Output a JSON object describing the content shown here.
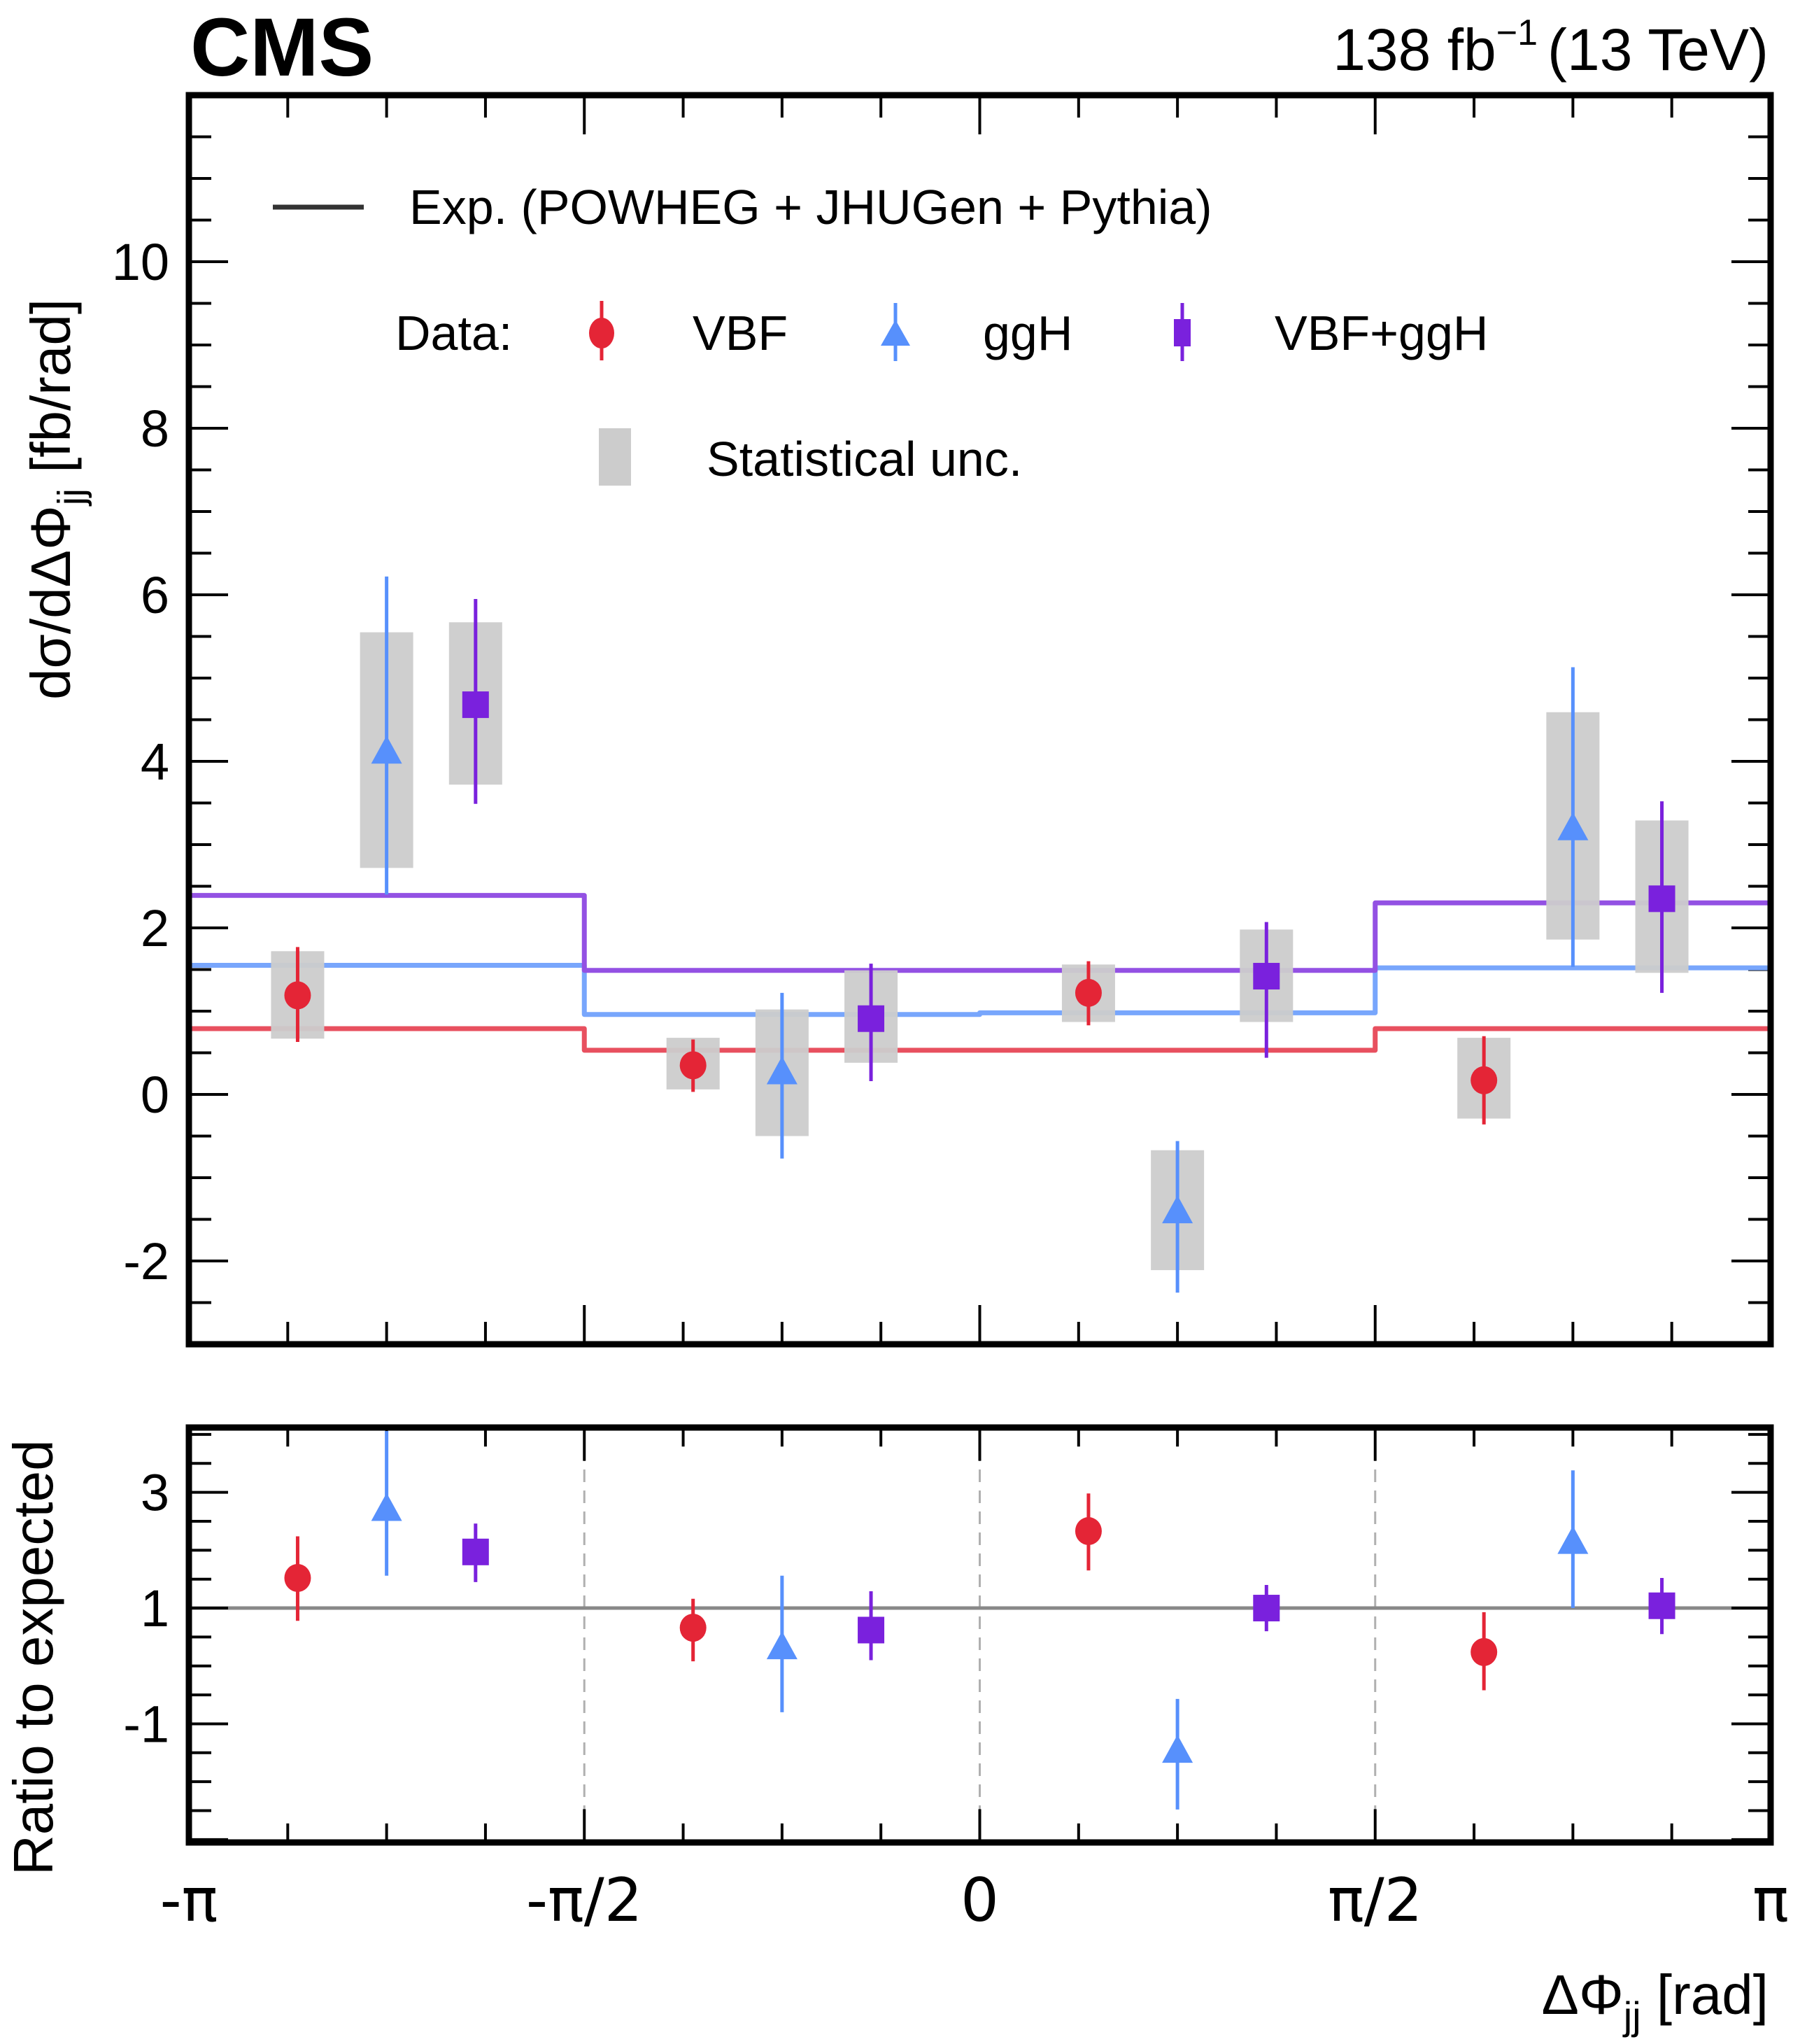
{
  "header": {
    "experiment": "CMS",
    "luminosity_text": "138 fb",
    "luminosity_exponent": "−1",
    "energy_text": "(13 TeV)"
  },
  "colors": {
    "vbf": "#e42536",
    "ggh": "#5790fc",
    "comb": "#7a21dd",
    "vbf_exp": "#e8505f",
    "ggh_exp": "#78a6fc",
    "comb_exp": "#9351e3",
    "stat_band": "#cccccc",
    "ratio_ref": "#888888",
    "divider": "#b0b0b0"
  },
  "legend": {
    "expected_label": "Exp. (POWHEG + JHUGen + Pythia)",
    "data_prefix": "Data:",
    "vbf_label": "VBF",
    "ggh_label": "ggH",
    "comb_label": "VBF+ggH",
    "stat_label": "Statistical unc."
  },
  "chart_data": [
    {
      "type": "scatter",
      "panel": "main",
      "title": "",
      "xlabel": "ΔΦjj [rad]",
      "ylabel": "dσ/dΔΦjj [fb/rad]",
      "xlim": [
        -3.14159,
        3.14159
      ],
      "ylim": [
        -3,
        12
      ],
      "yticks": [
        -2,
        0,
        2,
        4,
        6,
        8,
        10
      ],
      "ytick_labels": [
        "-2",
        "0",
        "2",
        "4",
        "6",
        "8",
        "10"
      ],
      "bin_edges": [
        -3.14159,
        -1.5708,
        0,
        1.5708,
        3.14159
      ],
      "xtick_labels": [
        "-π",
        "-π/2",
        "0",
        "π/2",
        "π"
      ],
      "legend_position": "top",
      "expected": [
        {
          "name": "VBF",
          "values": [
            0.79,
            0.53,
            0.53,
            0.79
          ]
        },
        {
          "name": "ggH",
          "values": [
            1.55,
            0.96,
            0.98,
            1.52
          ]
        },
        {
          "name": "VBF+ggH",
          "values": [
            2.39,
            1.49,
            1.49,
            2.3
          ]
        }
      ],
      "series": [
        {
          "name": "VBF",
          "marker": "circle",
          "values": [
            1.19,
            0.35,
            1.22,
            0.17
          ],
          "err_up": [
            1.77,
            0.66,
            1.6,
            0.7
          ],
          "err_down": [
            0.63,
            0.03,
            0.83,
            -0.36
          ],
          "stat_up": [
            1.72,
            0.68,
            1.56,
            0.68
          ],
          "stat_down": [
            0.67,
            0.06,
            0.87,
            -0.29
          ]
        },
        {
          "name": "ggH",
          "marker": "triangle",
          "values": [
            4.1,
            0.25,
            -1.42,
            3.18
          ],
          "err_up": [
            6.22,
            1.22,
            -0.56,
            5.13
          ],
          "err_down": [
            2.4,
            -0.77,
            -2.38,
            1.53
          ],
          "stat_up": [
            5.55,
            1.02,
            -0.67,
            4.59
          ],
          "stat_down": [
            2.72,
            -0.5,
            -2.11,
            1.86
          ]
        },
        {
          "name": "VBF+ggH",
          "marker": "square",
          "values": [
            4.68,
            0.91,
            1.42,
            2.35
          ],
          "err_up": [
            5.95,
            1.57,
            2.07,
            3.52
          ],
          "err_down": [
            3.49,
            0.16,
            0.44,
            1.22
          ],
          "stat_up": [
            5.67,
            1.49,
            1.98,
            3.29
          ],
          "stat_down": [
            3.72,
            0.38,
            0.87,
            1.46
          ]
        }
      ]
    },
    {
      "type": "scatter",
      "panel": "ratio",
      "xlabel": "ΔΦjj [rad]",
      "ylabel": "Ratio to expected",
      "xlim": [
        -3.14159,
        3.14159
      ],
      "ylim": [
        -3.05,
        4.12
      ],
      "yticks": [
        -1,
        1,
        3
      ],
      "ytick_labels": [
        "-1",
        "1",
        "3"
      ],
      "reference_line": 1,
      "series": [
        {
          "name": "VBF",
          "marker": "circle",
          "values": [
            1.52,
            0.66,
            2.33,
            0.24
          ],
          "err_up": [
            2.24,
            1.16,
            2.98,
            0.93
          ],
          "err_down": [
            0.78,
            0.08,
            1.65,
            -0.42
          ]
        },
        {
          "name": "ggH",
          "marker": "triangle",
          "values": [
            2.69,
            0.3,
            -1.49,
            2.12
          ],
          "err_up": [
            4.12,
            1.56,
            -0.57,
            3.38
          ],
          "err_down": [
            1.56,
            -0.8,
            -2.48,
            1.0
          ]
        },
        {
          "name": "VBF+ggH",
          "marker": "square",
          "values": [
            1.97,
            0.62,
            1.0,
            1.04
          ],
          "err_up": [
            2.46,
            1.29,
            1.4,
            1.52
          ],
          "err_down": [
            1.45,
            0.1,
            0.6,
            0.55
          ]
        }
      ]
    }
  ]
}
